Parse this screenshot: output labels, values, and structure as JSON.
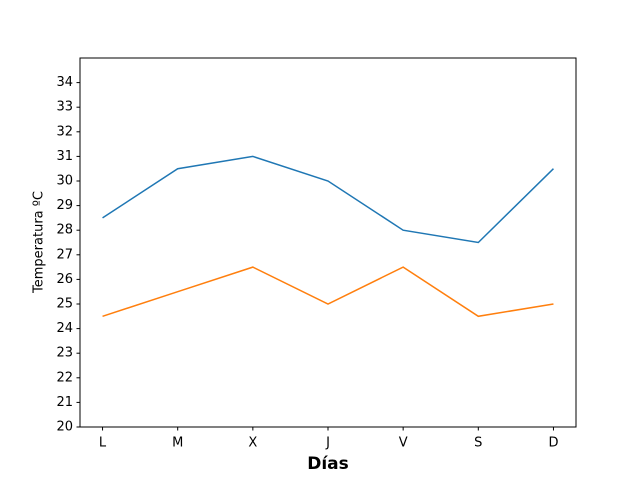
{
  "chart_data": {
    "type": "line",
    "xlabel": "Días",
    "ylabel": "Temperatura ºC",
    "xlabel_color": "#1f77b4",
    "categories": [
      "L",
      "M",
      "X",
      "J",
      "V",
      "S",
      "D"
    ],
    "series": [
      {
        "color": "#1f77b4",
        "values": [
          28.5,
          30.5,
          31,
          30,
          28,
          27.5,
          30.5
        ]
      },
      {
        "color": "#ff7f0e",
        "values": [
          24.5,
          25.5,
          26.5,
          25,
          26.5,
          24.5,
          25
        ]
      }
    ],
    "ylim": [
      20,
      35
    ],
    "yticks": [
      20,
      21,
      22,
      23,
      24,
      25,
      26,
      27,
      28,
      29,
      30,
      31,
      32,
      33,
      34
    ],
    "grid": false
  }
}
